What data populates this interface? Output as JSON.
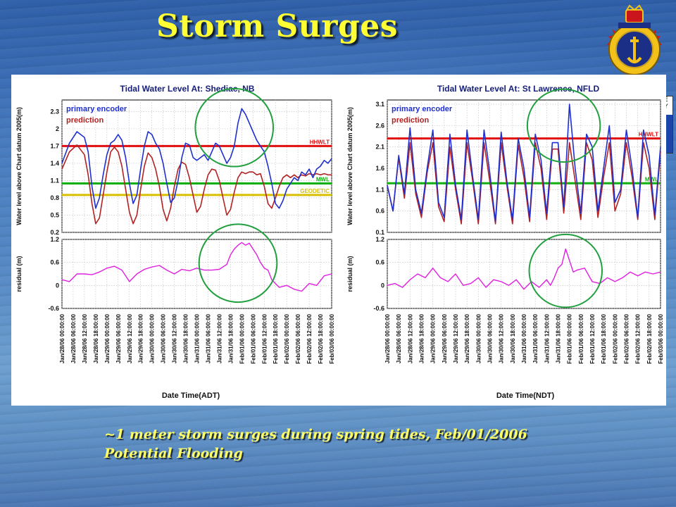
{
  "title": "Storm Surges",
  "caption": {
    "line1": "~1 meter storm surges during spring tides, Feb/01/2006",
    "line2": "Potential Flooding"
  },
  "colors": {
    "title": "#ffff33",
    "caption": "#ffff66",
    "observed": "#1f2fd0",
    "prediction": "#b22222",
    "hhwlt": "#e01010",
    "mwl": "#10b010",
    "geodetic": "#d8c000",
    "residual": "#e020e0",
    "highlight": "#22a040"
  },
  "icons": {
    "crest": "canadian-hydrographic-service-crest-icon"
  },
  "edge_strip": {
    "text": "E\nY"
  },
  "chart_data": [
    {
      "type": "line",
      "title": "Tidal Water Level At: Shediac, NB",
      "ylabel": "Water level above Chart datum 2005(m)",
      "xlabel": "Date Time(ADT)",
      "x_unit": "hours since Jan/28/06 00:00:00",
      "xlim": [
        0,
        144
      ],
      "ylim": [
        0.2,
        2.5
      ],
      "yticks": [
        "0.2",
        "0.5",
        "0.8",
        "1.1",
        "1.4",
        "1.7",
        "2",
        "2.3"
      ],
      "ytick_values": [
        0.2,
        0.5,
        0.8,
        1.1,
        1.4,
        1.7,
        2.0,
        2.3
      ],
      "xticks": [
        "Jan/28/06 00:00:00",
        "Jan/28/06 06:00:00",
        "Jan/28/06 12:00:00",
        "Jan/28/06 18:00:00",
        "Jan/29/06 00:00:00",
        "Jan/29/06 06:00:00",
        "Jan/29/06 12:00:00",
        "Jan/29/06 18:00:00",
        "Jan/30/06 00:00:00",
        "Jan/30/06 06:00:00",
        "Jan/30/06 12:00:00",
        "Jan/30/06 18:00:00",
        "Jan/31/06 00:00:00",
        "Jan/31/06 06:00:00",
        "Jan/31/06 12:00:00",
        "Jan/31/06 18:00:00",
        "Feb/01/06 00:00:00",
        "Feb/01/06 06:00:00",
        "Feb/01/06 12:00:00",
        "Feb/01/06 18:00:00",
        "Feb/02/06 00:00:00",
        "Feb/02/06 06:00:00",
        "Feb/02/06 12:00:00",
        "Feb/02/06 18:00:00",
        "Feb/03/06 00:00:00"
      ],
      "legend": [
        "primary encoder",
        "prediction"
      ],
      "reference_lines": [
        {
          "name": "HHWLT",
          "y": 1.7,
          "color": "#e01010"
        },
        {
          "name": "MWL",
          "y": 1.05,
          "color": "#10b010"
        },
        {
          "name": "GEODETIC",
          "y": 0.85,
          "color": "#d8c000"
        }
      ],
      "series": [
        {
          "name": "primary encoder",
          "color": "#1f2fd0",
          "x": [
            0,
            4,
            8,
            12,
            14,
            16,
            18,
            20,
            22,
            24,
            26,
            28,
            30,
            32,
            34,
            36,
            38,
            40,
            42,
            44,
            46,
            48,
            50,
            52,
            54,
            56,
            58,
            60,
            62,
            64,
            66,
            68,
            70,
            72,
            74,
            76,
            78,
            80,
            82,
            84,
            86,
            88,
            90,
            92,
            94,
            96,
            98,
            100,
            102,
            104,
            106,
            108,
            110,
            112,
            114,
            116,
            118,
            120,
            122,
            124,
            126,
            128,
            130,
            132,
            134,
            136,
            138,
            140,
            142,
            144
          ],
          "y": [
            1.4,
            1.75,
            1.95,
            1.85,
            1.6,
            1.0,
            0.62,
            0.8,
            1.2,
            1.55,
            1.75,
            1.8,
            1.9,
            1.8,
            1.5,
            1.05,
            0.7,
            0.85,
            1.3,
            1.7,
            1.95,
            1.9,
            1.75,
            1.65,
            1.4,
            1.05,
            0.72,
            0.8,
            1.1,
            1.5,
            1.75,
            1.72,
            1.5,
            1.45,
            1.5,
            1.55,
            1.45,
            1.6,
            1.75,
            1.7,
            1.55,
            1.4,
            1.5,
            1.7,
            2.1,
            2.35,
            2.25,
            2.1,
            1.95,
            1.8,
            1.7,
            1.6,
            1.35,
            1.05,
            0.7,
            0.62,
            0.75,
            0.95,
            1.05,
            1.15,
            1.1,
            1.25,
            1.2,
            1.3,
            1.15,
            1.3,
            1.35,
            1.45,
            1.4,
            1.48
          ]
        },
        {
          "name": "prediction",
          "color": "#b22222",
          "x": [
            0,
            4,
            8,
            12,
            14,
            16,
            18,
            20,
            22,
            24,
            26,
            28,
            30,
            32,
            34,
            36,
            38,
            40,
            42,
            44,
            46,
            48,
            50,
            52,
            54,
            56,
            58,
            60,
            62,
            64,
            66,
            68,
            70,
            72,
            74,
            76,
            78,
            80,
            82,
            84,
            86,
            88,
            90,
            92,
            94,
            96,
            98,
            100,
            102,
            104,
            106,
            108,
            110,
            112,
            114,
            116,
            118,
            120,
            122,
            124,
            126,
            128,
            130,
            132,
            134,
            136,
            138,
            140,
            142,
            144
          ],
          "y": [
            1.3,
            1.6,
            1.72,
            1.55,
            1.2,
            0.7,
            0.35,
            0.45,
            0.85,
            1.25,
            1.6,
            1.68,
            1.6,
            1.35,
            0.95,
            0.55,
            0.35,
            0.5,
            0.95,
            1.35,
            1.58,
            1.5,
            1.3,
            1.0,
            0.6,
            0.4,
            0.62,
            1.0,
            1.3,
            1.42,
            1.38,
            1.15,
            0.85,
            0.55,
            0.65,
            0.95,
            1.2,
            1.3,
            1.28,
            1.1,
            0.8,
            0.5,
            0.6,
            0.9,
            1.15,
            1.25,
            1.22,
            1.25,
            1.25,
            1.2,
            1.22,
            1.0,
            0.7,
            0.62,
            0.8,
            1.0,
            1.15,
            1.2,
            1.15,
            1.2,
            1.15,
            1.2,
            1.18,
            1.22,
            1.2,
            1.22,
            1.2,
            1.22,
            1.2,
            1.2
          ]
        }
      ],
      "residual": {
        "ylabel": "residual (m)",
        "ylim": [
          -0.6,
          1.2
        ],
        "yticks": [
          "-0.6",
          "0",
          "0.6",
          "1.2"
        ],
        "ytick_values": [
          -0.6,
          0,
          0.6,
          1.2
        ],
        "series": {
          "name": "residual",
          "color": "#e020e0",
          "x": [
            0,
            4,
            8,
            12,
            16,
            20,
            24,
            28,
            32,
            36,
            40,
            44,
            48,
            52,
            56,
            60,
            64,
            68,
            72,
            76,
            80,
            84,
            88,
            90,
            92,
            94,
            96,
            98,
            100,
            102,
            104,
            106,
            108,
            110,
            112,
            116,
            120,
            124,
            128,
            132,
            136,
            140,
            144
          ],
          "y": [
            0.15,
            0.1,
            0.3,
            0.3,
            0.28,
            0.35,
            0.45,
            0.5,
            0.4,
            0.1,
            0.3,
            0.42,
            0.48,
            0.52,
            0.4,
            0.3,
            0.42,
            0.38,
            0.45,
            0.4,
            0.4,
            0.42,
            0.55,
            0.8,
            0.95,
            1.05,
            1.12,
            1.05,
            1.1,
            0.95,
            0.8,
            0.6,
            0.45,
            0.4,
            0.15,
            -0.05,
            0.0,
            -0.1,
            -0.15,
            0.05,
            0.0,
            0.25,
            0.3
          ]
        }
      },
      "highlights": [
        {
          "panel": "main",
          "center": [
            92,
            2.02
          ],
          "radius_hours": 13
        },
        {
          "panel": "residual",
          "center": [
            94,
            0.58
          ],
          "radius_hours": 13
        }
      ]
    },
    {
      "type": "line",
      "title": "Tidal Water Level At: St Lawrence, NFLD",
      "ylabel": "Water level above Chart datum 2005(m)",
      "xlabel": "Date Time(NDT)",
      "x_unit": "hours since Jan/28/06 00:00:00",
      "xlim": [
        0,
        144
      ],
      "ylim": [
        0.1,
        3.2
      ],
      "yticks": [
        "0.1",
        "0.6",
        "1.1",
        "1.6",
        "2.1",
        "2.6",
        "3.1"
      ],
      "ytick_values": [
        0.1,
        0.6,
        1.1,
        1.6,
        2.1,
        2.6,
        3.1
      ],
      "xticks": [
        "Jan/28/06 00:00:00",
        "Jan/28/06 06:00:00",
        "Jan/28/06 12:00:00",
        "Jan/28/06 18:00:00",
        "Jan/29/06 00:00:00",
        "Jan/29/06 06:00:00",
        "Jan/29/06 12:00:00",
        "Jan/29/06 18:00:00",
        "Jan/30/06 00:00:00",
        "Jan/30/06 06:00:00",
        "Jan/30/06 12:00:00",
        "Jan/30/06 18:00:00",
        "Jan/31/06 00:00:00",
        "Jan/31/06 06:00:00",
        "Jan/31/06 12:00:00",
        "Jan/31/06 18:00:00",
        "Feb/01/06 00:00:00",
        "Feb/01/06 06:00:00",
        "Feb/01/06 12:00:00",
        "Feb/01/06 18:00:00",
        "Feb/02/06 00:00:00",
        "Feb/02/06 06:00:00",
        "Feb/02/06 12:00:00",
        "Feb/02/06 18:00:00",
        "Feb/03/06 00:00:00"
      ],
      "legend": [
        "primary encoder",
        "prediction"
      ],
      "reference_lines": [
        {
          "name": "HHWLT",
          "y": 2.3,
          "color": "#e01010"
        },
        {
          "name": "MWL",
          "y": 1.25,
          "color": "#10b010"
        }
      ],
      "series": [
        {
          "name": "primary encoder",
          "color": "#1f2fd0",
          "x": [
            0,
            3,
            6,
            9,
            12,
            15,
            18,
            21,
            24,
            27,
            30,
            33,
            36,
            39,
            42,
            45,
            48,
            51,
            54,
            57,
            60,
            63,
            66,
            69,
            72,
            75,
            78,
            81,
            84,
            87,
            90,
            93,
            96,
            99,
            102,
            105,
            108,
            111,
            114,
            117,
            120,
            123,
            126,
            129,
            132,
            135,
            138,
            141,
            144
          ],
          "y": [
            1.2,
            0.6,
            1.9,
            1.0,
            2.55,
            1.1,
            0.55,
            1.6,
            2.5,
            0.8,
            0.45,
            2.4,
            1.2,
            0.4,
            2.5,
            1.4,
            0.4,
            2.5,
            1.5,
            0.35,
            2.45,
            1.3,
            0.4,
            2.3,
            1.6,
            0.45,
            2.4,
            1.8,
            0.55,
            2.2,
            2.2,
            0.7,
            3.1,
            1.6,
            0.55,
            2.4,
            2.1,
            0.6,
            1.6,
            2.6,
            0.8,
            1.1,
            2.5,
            1.6,
            0.45,
            2.5,
            1.9,
            0.5,
            2.1
          ]
        },
        {
          "name": "prediction",
          "color": "#b22222",
          "x": [
            0,
            3,
            6,
            9,
            12,
            15,
            18,
            21,
            24,
            27,
            30,
            33,
            36,
            39,
            42,
            45,
            48,
            51,
            54,
            57,
            60,
            63,
            66,
            69,
            72,
            75,
            78,
            81,
            84,
            87,
            90,
            93,
            96,
            99,
            102,
            105,
            108,
            111,
            114,
            117,
            120,
            123,
            126,
            129,
            132,
            135,
            138,
            141,
            144
          ],
          "y": [
            1.2,
            0.6,
            1.85,
            0.9,
            2.2,
            1.0,
            0.45,
            1.5,
            2.2,
            0.7,
            0.35,
            2.1,
            1.1,
            0.3,
            2.2,
            1.3,
            0.3,
            2.2,
            1.3,
            0.3,
            2.2,
            1.2,
            0.3,
            2.15,
            1.4,
            0.35,
            2.2,
            1.6,
            0.4,
            2.05,
            2.05,
            0.55,
            2.2,
            1.3,
            0.4,
            2.2,
            1.8,
            0.45,
            1.4,
            2.2,
            0.6,
            1.0,
            2.2,
            1.4,
            0.4,
            2.2,
            1.6,
            0.4,
            2.0
          ]
        }
      ],
      "residual": {
        "ylabel": "residual (m)",
        "ylim": [
          -0.6,
          1.2
        ],
        "yticks": [
          "-0.6",
          "0",
          "0.6",
          "1.2"
        ],
        "ytick_values": [
          -0.6,
          0,
          0.6,
          1.2
        ],
        "series": {
          "name": "residual",
          "color": "#e020e0",
          "x": [
            0,
            4,
            8,
            12,
            16,
            20,
            24,
            28,
            32,
            36,
            40,
            44,
            48,
            52,
            56,
            60,
            64,
            68,
            72,
            76,
            80,
            84,
            86,
            88,
            90,
            92,
            94,
            96,
            98,
            100,
            104,
            108,
            112,
            116,
            120,
            124,
            128,
            132,
            136,
            140,
            144
          ],
          "y": [
            0.0,
            0.05,
            -0.05,
            0.15,
            0.3,
            0.2,
            0.45,
            0.2,
            0.1,
            0.3,
            0.0,
            0.05,
            0.2,
            -0.05,
            0.15,
            0.1,
            0.0,
            0.15,
            -0.1,
            0.1,
            -0.05,
            0.15,
            0.0,
            0.2,
            0.45,
            0.55,
            0.95,
            0.65,
            0.35,
            0.4,
            0.45,
            0.1,
            0.05,
            0.2,
            0.1,
            0.2,
            0.35,
            0.25,
            0.35,
            0.3,
            0.35
          ]
        }
      },
      "highlights": [
        {
          "panel": "main",
          "center": [
            93,
            2.6
          ],
          "radius_hours": 12
        },
        {
          "panel": "residual",
          "center": [
            94,
            0.38
          ],
          "radius_hours": 12
        }
      ]
    }
  ]
}
